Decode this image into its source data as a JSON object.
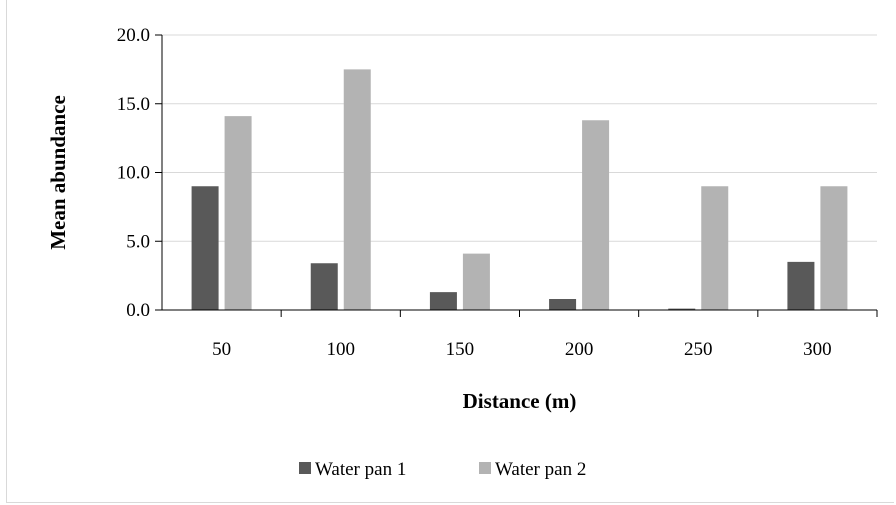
{
  "chart_data": {
    "type": "bar",
    "title": "",
    "xlabel": "Distance (m)",
    "ylabel": "Mean abundance",
    "categories": [
      "50",
      "100",
      "150",
      "200",
      "250",
      "300"
    ],
    "series": [
      {
        "name": "Water pan 1",
        "color": "#595959",
        "values": [
          9.0,
          3.4,
          1.3,
          0.8,
          0.1,
          3.5
        ]
      },
      {
        "name": "Water pan 2",
        "color": "#b3b3b3",
        "values": [
          14.1,
          17.5,
          4.1,
          13.8,
          9.0,
          9.0
        ]
      }
    ],
    "ylim": [
      0,
      20
    ],
    "yticks": [
      "0.0",
      "5.0",
      "10.0",
      "15.0",
      "20.0"
    ],
    "grid": true,
    "legend_position": "bottom"
  }
}
